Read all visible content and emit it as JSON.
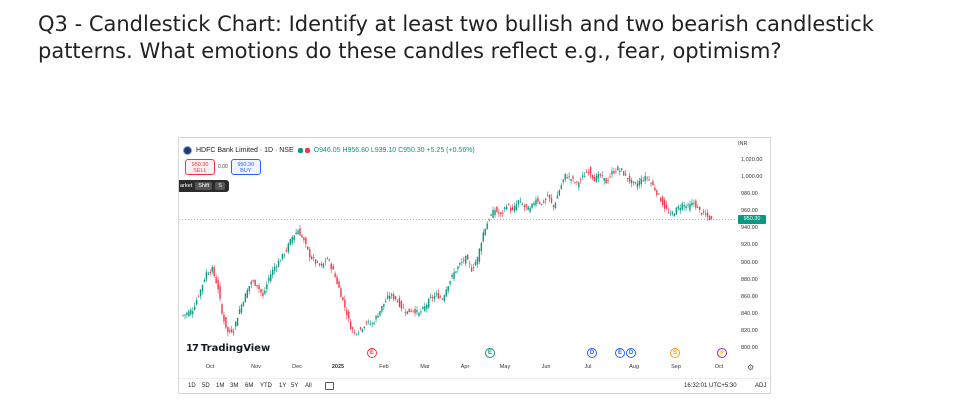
{
  "question": "Q3 - Candlestick Chart: Identify at least two bullish and two bearish candlestick patterns. What emotions do these candles reflect e.g., fear, optimism?",
  "legend": {
    "symbol": "HDFC Bank Limited · 1D · NSE",
    "ohlc": "O946.05 H956.80 L939.10 C950.30 +5.25 (+0.56%)"
  },
  "trade": {
    "sell_price": "950.30",
    "sell_label": "SELL",
    "spread": "0.00",
    "buy_price": "950.30",
    "buy_label": "BUY"
  },
  "shortcut": {
    "label": "arket",
    "key1": "Shift",
    "key2": "S"
  },
  "currency": "INR",
  "price_ticks": [
    "1,020.00",
    "1,000.00",
    "980.00",
    "960.00",
    "940.00",
    "920.00",
    "900.00",
    "880.00",
    "860.00",
    "840.00",
    "820.00",
    "800.00"
  ],
  "last_price": "950.30",
  "time_labels": [
    {
      "text": "Oct",
      "bold": false
    },
    {
      "text": "Nov",
      "bold": false
    },
    {
      "text": "Dec",
      "bold": false
    },
    {
      "text": "2025",
      "bold": true
    },
    {
      "text": "Feb",
      "bold": false
    },
    {
      "text": "Mar",
      "bold": false
    },
    {
      "text": "Apr",
      "bold": false
    },
    {
      "text": "May",
      "bold": false
    },
    {
      "text": "Jun",
      "bold": false
    },
    {
      "text": "Jul",
      "bold": false
    },
    {
      "text": "Aug",
      "bold": false
    },
    {
      "text": "Sep",
      "bold": false
    },
    {
      "text": "Oct",
      "bold": false
    }
  ],
  "events": [
    {
      "letter": "E",
      "color": "#f23645"
    },
    {
      "letter": "E",
      "color": "#089981"
    },
    {
      "letter": "D",
      "color": "#2962ff"
    },
    {
      "letter": "E",
      "color": "#2962ff"
    },
    {
      "letter": "D",
      "color": "#2962ff"
    },
    {
      "letter": "S",
      "color": "#ff9800"
    },
    {
      "letter": "⚡",
      "color": "#9c27b0"
    }
  ],
  "branding": "TradingView",
  "ranges": [
    "1D",
    "5D",
    "1M",
    "3M",
    "6M",
    "YTD",
    "1Y",
    "5Y",
    "All"
  ],
  "clock": "16:32:01 UTC+5:30",
  "adj": "ADJ",
  "colors": {
    "up": "#089981",
    "down": "#f23645"
  },
  "chart_data": {
    "type": "candlestick",
    "price_range": [
      800,
      1020
    ],
    "anchors": [
      [
        0,
        838
      ],
      [
        5,
        845
      ],
      [
        9,
        868
      ],
      [
        12,
        888
      ],
      [
        15,
        892
      ],
      [
        18,
        870
      ],
      [
        20,
        840
      ],
      [
        23,
        818
      ],
      [
        26,
        822
      ],
      [
        29,
        845
      ],
      [
        32,
        862
      ],
      [
        35,
        878
      ],
      [
        38,
        874
      ],
      [
        41,
        860
      ],
      [
        44,
        882
      ],
      [
        47,
        895
      ],
      [
        50,
        904
      ],
      [
        53,
        915
      ],
      [
        56,
        930
      ],
      [
        59,
        938
      ],
      [
        62,
        925
      ],
      [
        65,
        908
      ],
      [
        68,
        900
      ],
      [
        71,
        895
      ],
      [
        74,
        905
      ],
      [
        77,
        890
      ],
      [
        80,
        870
      ],
      [
        83,
        848
      ],
      [
        86,
        825
      ],
      [
        88,
        818
      ],
      [
        91,
        822
      ],
      [
        94,
        830
      ],
      [
        97,
        828
      ],
      [
        100,
        840
      ],
      [
        103,
        852
      ],
      [
        106,
        862
      ],
      [
        109,
        858
      ],
      [
        112,
        848
      ],
      [
        115,
        842
      ],
      [
        118,
        845
      ],
      [
        121,
        840
      ],
      [
        124,
        848
      ],
      [
        127,
        858
      ],
      [
        130,
        862
      ],
      [
        133,
        858
      ],
      [
        136,
        875
      ],
      [
        139,
        888
      ],
      [
        142,
        898
      ],
      [
        145,
        905
      ],
      [
        148,
        892
      ],
      [
        151,
        905
      ],
      [
        154,
        935
      ],
      [
        157,
        952
      ],
      [
        160,
        962
      ],
      [
        163,
        955
      ],
      [
        166,
        968
      ],
      [
        169,
        960
      ],
      [
        172,
        972
      ],
      [
        175,
        965
      ],
      [
        178,
        962
      ],
      [
        181,
        975
      ],
      [
        184,
        968
      ],
      [
        187,
        978
      ],
      [
        190,
        965
      ],
      [
        193,
        985
      ],
      [
        196,
        1002
      ],
      [
        199,
        998
      ],
      [
        202,
        992
      ],
      [
        205,
        1000
      ],
      [
        208,
        1008
      ],
      [
        211,
        998
      ],
      [
        214,
        1002
      ],
      [
        217,
        994
      ],
      [
        220,
        1005
      ],
      [
        223,
        1010
      ],
      [
        226,
        1004
      ],
      [
        229,
        996
      ],
      [
        232,
        990
      ],
      [
        235,
        997
      ],
      [
        238,
        1000
      ],
      [
        241,
        990
      ],
      [
        244,
        978
      ],
      [
        247,
        965
      ],
      [
        250,
        955
      ],
      [
        253,
        962
      ],
      [
        256,
        968
      ],
      [
        259,
        965
      ],
      [
        262,
        970
      ],
      [
        265,
        960
      ],
      [
        268,
        955
      ],
      [
        271,
        950
      ]
    ]
  }
}
